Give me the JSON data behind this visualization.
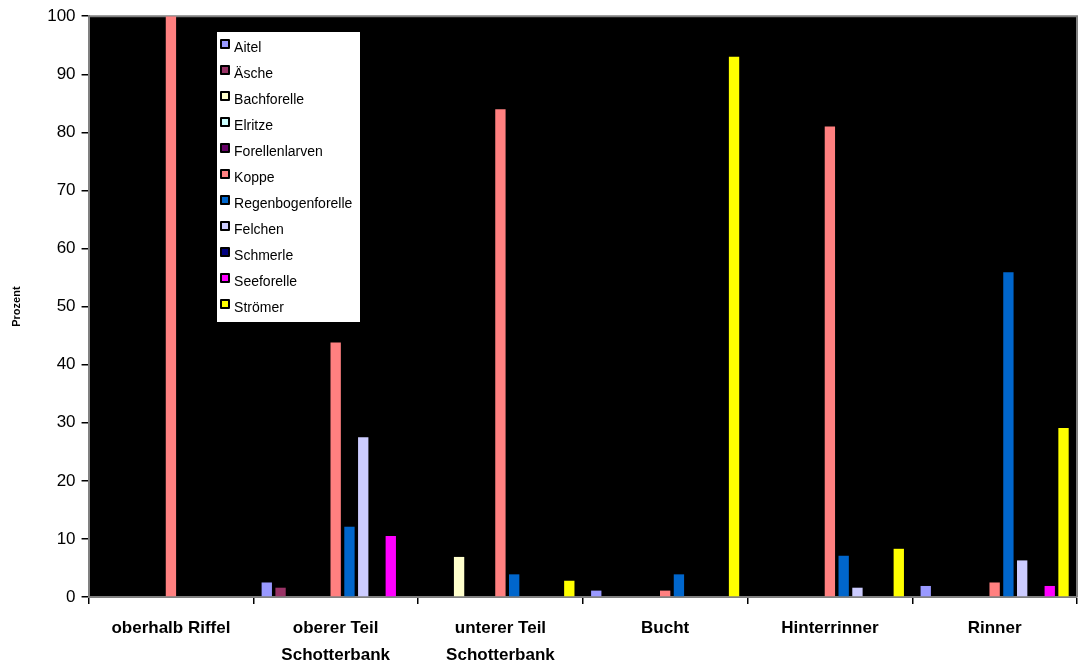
{
  "chart_data": {
    "type": "bar",
    "ylabel": "Prozent",
    "categories": [
      "oberhalb Riffel",
      "oberer Teil Schotterbank",
      "unterer Teil Schotterbank",
      "Bucht",
      "Hinterrinner",
      "Rinner"
    ],
    "series": [
      {
        "name": "Aitel",
        "color": "#9999ff",
        "values": [
          0,
          2.5,
          0,
          1.1,
          0,
          1.9
        ]
      },
      {
        "name": "Äsche",
        "color": "#993366",
        "values": [
          0,
          1.6,
          0,
          0,
          0,
          0
        ]
      },
      {
        "name": "Bachforelle",
        "color": "#ffffcc",
        "values": [
          0,
          0,
          6.9,
          0,
          0,
          0
        ]
      },
      {
        "name": "Elritze",
        "color": "#ccffff",
        "values": [
          0,
          0,
          0,
          0,
          0,
          0
        ]
      },
      {
        "name": "Forellenlarven",
        "color": "#660066",
        "values": [
          0,
          0,
          0,
          0,
          0,
          0
        ]
      },
      {
        "name": "Koppe",
        "color": "#ff8080",
        "values": [
          100,
          43.8,
          84,
          1.1,
          81,
          2.5
        ]
      },
      {
        "name": "Regenbogenforelle",
        "color": "#0066cc",
        "values": [
          0,
          12.1,
          3.9,
          3.9,
          7.1,
          55.9
        ]
      },
      {
        "name": "Felchen",
        "color": "#ccccff",
        "values": [
          0,
          27.5,
          0,
          0,
          1.6,
          6.3
        ]
      },
      {
        "name": "Schmerle",
        "color": "#000080",
        "values": [
          0,
          0,
          0,
          0,
          0,
          0
        ]
      },
      {
        "name": "Seeforelle",
        "color": "#ff00ff",
        "values": [
          0,
          10.5,
          0,
          0,
          0,
          1.9
        ]
      },
      {
        "name": "Strömer",
        "color": "#ffff00",
        "values": [
          0,
          0,
          2.8,
          93,
          8.3,
          29.1
        ]
      }
    ],
    "ylim": [
      0,
      100
    ],
    "yticks": [
      0,
      10,
      20,
      30,
      40,
      50,
      60,
      70,
      80,
      90,
      100
    ],
    "grid": false,
    "legend": "top left"
  }
}
